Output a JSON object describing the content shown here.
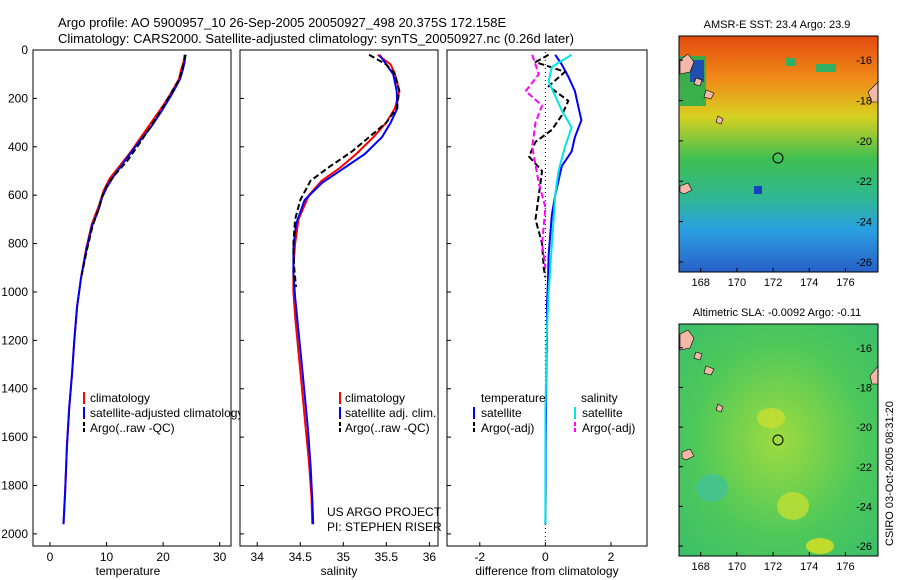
{
  "figure": {
    "title_line1": "Argo profile: AO 5900957_10 26-Sep-2005 20050927_498 20.375S 172.158E",
    "title_line2": "Climatology: CARS2000. Satellite-adjusted climatology: synTS_20050927.nc (0.26d later)",
    "footer_line1": "US ARGO PROJECT",
    "footer_line2": "PI: STEPHEN RISER",
    "side_stamp": "CSIRO 03-Oct-2005 08:31:20"
  },
  "colors": {
    "climatology": "#ff0000",
    "satellite": "#0000ff",
    "argo": "#000000",
    "sat_salinity_diff": "#00e5e5",
    "argo_salinity_diff": "#ff00ff"
  },
  "chart_data": [
    {
      "id": "temperature",
      "type": "line",
      "xlabel": "temperature",
      "ylabel": "",
      "xlim": [
        -3,
        32
      ],
      "ylim": [
        2050,
        0
      ],
      "xticks": [
        0,
        10,
        20,
        30
      ],
      "yticks": [
        0,
        200,
        400,
        600,
        800,
        1000,
        1200,
        1400,
        1600,
        1800,
        2000
      ],
      "legend": [
        "climatology",
        "satellite-adjusted climatology",
        "Argo(..raw -QC)"
      ],
      "series": [
        {
          "name": "climatology",
          "color": "#ff0000",
          "dash": "",
          "x": [
            23.8,
            23.6,
            23.2,
            22.8,
            21.6,
            20.0,
            18.2,
            16.4,
            14.3,
            12.3,
            10.6,
            9.5,
            8.7,
            7.4,
            6.4,
            5.5,
            4.8,
            4.3,
            3.9,
            3.4,
            3.0,
            2.7,
            2.4
          ],
          "y": [
            20,
            50,
            80,
            120,
            170,
            230,
            290,
            350,
            420,
            480,
            530,
            580,
            640,
            720,
            820,
            940,
            1060,
            1200,
            1340,
            1480,
            1640,
            1820,
            1960
          ]
        },
        {
          "name": "satellite-adjusted climatology",
          "color": "#0000ff",
          "dash": "",
          "x": [
            23.9,
            23.8,
            23.5,
            23.0,
            21.6,
            19.8,
            17.8,
            15.4,
            13.2,
            11.3,
            10.0,
            9.2,
            8.6,
            7.4,
            6.4,
            5.5,
            4.8,
            4.3,
            3.9,
            3.4,
            3.0,
            2.7,
            2.4
          ],
          "y": [
            20,
            50,
            80,
            120,
            180,
            250,
            320,
            390,
            460,
            520,
            570,
            610,
            660,
            730,
            830,
            940,
            1060,
            1200,
            1340,
            1480,
            1640,
            1820,
            1960
          ]
        },
        {
          "name": "Argo(..raw -QC)",
          "color": "#000000",
          "dash": "6,3",
          "x": [
            24.0,
            23.7,
            23.4,
            22.9,
            21.4,
            19.6,
            17.7,
            15.7,
            13.6,
            11.7,
            10.3,
            9.3,
            8.7,
            7.5,
            6.5,
            5.6
          ],
          "y": [
            20,
            50,
            80,
            120,
            180,
            250,
            320,
            390,
            460,
            510,
            550,
            600,
            650,
            730,
            830,
            930
          ]
        }
      ]
    },
    {
      "id": "salinity",
      "type": "line",
      "xlabel": "salinity",
      "ylabel": "",
      "xlim": [
        33.8,
        36.1
      ],
      "ylim": [
        2050,
        0
      ],
      "xticks": [
        34,
        34.5,
        35,
        35.5,
        36
      ],
      "xticklabels": [
        "34",
        "34.5",
        "35",
        "35.5",
        "36"
      ],
      "yticks": [
        0,
        200,
        400,
        600,
        800,
        1000,
        1200,
        1400,
        1600,
        1800,
        2000
      ],
      "legend": [
        "climatology",
        "satellite adj. clim.",
        "Argo(..raw -QC)"
      ],
      "series": [
        {
          "name": "climatology",
          "color": "#ff0000",
          "dash": "",
          "x": [
            35.4,
            35.55,
            35.6,
            35.65,
            35.6,
            35.5,
            35.35,
            35.15,
            34.95,
            34.75,
            34.6,
            34.48,
            34.44,
            34.42,
            34.42,
            34.44,
            34.48,
            34.52,
            34.56,
            34.6,
            34.63,
            34.64
          ],
          "y": [
            20,
            60,
            100,
            170,
            240,
            300,
            360,
            430,
            490,
            540,
            600,
            700,
            800,
            900,
            1000,
            1100,
            1250,
            1400,
            1550,
            1700,
            1850,
            1960
          ]
        },
        {
          "name": "satellite adj. clim.",
          "color": "#0000ff",
          "dash": "",
          "x": [
            35.42,
            35.5,
            35.58,
            35.62,
            35.63,
            35.55,
            35.45,
            35.25,
            35.0,
            34.75,
            34.55,
            34.45,
            34.42,
            34.42,
            34.44,
            34.47,
            34.51,
            34.55,
            34.59,
            34.62,
            34.64,
            34.65
          ],
          "y": [
            20,
            60,
            100,
            170,
            240,
            300,
            360,
            430,
            490,
            550,
            620,
            720,
            820,
            920,
            1020,
            1130,
            1270,
            1420,
            1570,
            1720,
            1860,
            1960
          ]
        },
        {
          "name": "Argo(..raw -QC)",
          "color": "#000000",
          "dash": "6,3",
          "x": [
            35.3,
            35.5,
            35.6,
            35.65,
            35.62,
            35.5,
            35.3,
            35.1,
            34.85,
            34.62,
            34.5,
            34.44,
            34.42,
            34.43,
            34.45
          ],
          "y": [
            20,
            60,
            100,
            170,
            240,
            300,
            360,
            420,
            480,
            540,
            620,
            700,
            800,
            900,
            980
          ]
        }
      ]
    },
    {
      "id": "difference",
      "type": "line",
      "xlabel": "difference from climatology",
      "ylabel": "",
      "xlim": [
        -3,
        3.1
      ],
      "ylim": [
        2050,
        0
      ],
      "xticks": [
        -2,
        0,
        2
      ],
      "yticks": [
        0,
        200,
        400,
        600,
        800,
        1000,
        1200,
        1400,
        1600,
        1800,
        2000
      ],
      "legend_temperature": {
        "title": "temperature",
        "items": [
          "satellite",
          "Argo(-adj)"
        ]
      },
      "legend_salinity": {
        "title": "salinity",
        "items": [
          "satellite",
          "Argo(-adj)"
        ]
      },
      "series": [
        {
          "name": "satellite",
          "group": "temperature",
          "color": "#0000ff",
          "dash": "",
          "x": [
            0.3,
            0.5,
            0.7,
            0.9,
            1.0,
            1.1,
            0.9,
            0.8,
            0.5,
            0.4,
            0.3,
            0.2,
            0.15,
            0.1,
            0.08,
            0.05,
            0.05,
            0.03,
            0.02,
            0.01,
            0.01,
            0.0
          ],
          "y": [
            20,
            60,
            110,
            170,
            230,
            290,
            360,
            420,
            480,
            540,
            600,
            680,
            760,
            850,
            950,
            1050,
            1200,
            1350,
            1500,
            1650,
            1800,
            1960
          ]
        },
        {
          "name": "Argo(-adj)",
          "group": "temperature",
          "color": "#000000",
          "dash": "6,3",
          "x": [
            0.1,
            -0.3,
            0.6,
            0.1,
            0.7,
            0.5,
            0.2,
            -0.3,
            -0.5,
            -0.1,
            -0.2,
            -0.3,
            -0.1,
            -0.05,
            0.0
          ],
          "y": [
            20,
            50,
            90,
            150,
            210,
            270,
            330,
            380,
            440,
            500,
            600,
            700,
            800,
            900,
            940
          ]
        },
        {
          "name": "satellite",
          "group": "salinity",
          "color": "#00e5e5",
          "dash": "",
          "x": [
            0.8,
            0.2,
            0.1,
            0.3,
            0.5,
            0.8,
            0.6,
            0.4,
            0.3,
            0.25,
            0.2,
            0.15,
            0.1,
            0.05,
            0.03,
            0.0,
            0.0
          ],
          "y": [
            20,
            70,
            130,
            190,
            250,
            320,
            400,
            500,
            600,
            700,
            800,
            900,
            1000,
            1150,
            1300,
            1500,
            1960
          ]
        },
        {
          "name": "Argo(-adj)",
          "group": "salinity",
          "color": "#ff00ff",
          "dash": "6,3",
          "x": [
            -0.4,
            -0.2,
            -0.6,
            -0.1,
            -0.3,
            -0.4,
            -0.2,
            0.0,
            -0.1,
            0.0
          ],
          "y": [
            20,
            100,
            170,
            230,
            300,
            400,
            550,
            650,
            800,
            900
          ]
        }
      ]
    },
    {
      "id": "sst_map",
      "type": "heatmap",
      "title": "AMSR-E SST: 23.4 Argo: 23.9",
      "xlim": [
        166.8,
        177.8
      ],
      "ylim": [
        -26.5,
        -14.8
      ],
      "xticks": [
        168,
        170,
        172,
        174,
        176
      ],
      "yticks": [
        -16,
        -18,
        -20,
        -22,
        -24,
        -26
      ],
      "argo_position": [
        172.158,
        -20.375
      ]
    },
    {
      "id": "sla_map",
      "type": "heatmap",
      "title": "Altimetric SLA: -0.0092 Argo: -0.11",
      "xlim": [
        166.8,
        177.8
      ],
      "ylim": [
        -26.5,
        -14.8
      ],
      "xticks": [
        168,
        170,
        172,
        174,
        176
      ],
      "yticks": [
        -16,
        -18,
        -20,
        -22,
        -24,
        -26
      ],
      "argo_position": [
        172.158,
        -20.375
      ]
    }
  ]
}
